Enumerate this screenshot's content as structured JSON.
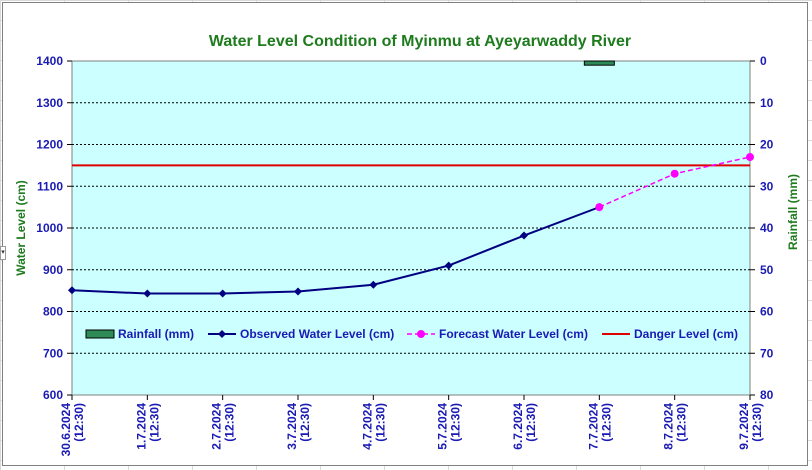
{
  "chart_data": {
    "type": "line",
    "title": "Water Level Condition of Myinmu at Ayeyarwaddy River",
    "ylabel": "Water Level (cm)",
    "y2label": "Rainfall (mm)",
    "ylim": [
      600,
      1400
    ],
    "y2lim": [
      0,
      80
    ],
    "y2_inverted": true,
    "yticks": [
      "600",
      "700",
      "800",
      "900",
      "1000",
      "1100",
      "1200",
      "1300",
      "1400"
    ],
    "y2ticks": [
      "0",
      "10",
      "20",
      "30",
      "40",
      "50",
      "60",
      "70",
      "80"
    ],
    "categories": [
      [
        "30.6.2024",
        "(12:30)"
      ],
      [
        "1.7.2024",
        "(12:30)"
      ],
      [
        "2.7.2024",
        "(12:30)"
      ],
      [
        "3.7.2024",
        "(12:30)"
      ],
      [
        "4.7.2024",
        "(12:30)"
      ],
      [
        "5.7.2024",
        "(12:30)"
      ],
      [
        "6.7.2024",
        "(12:30)"
      ],
      [
        "7.7.2024",
        "(12:30)"
      ],
      [
        "8.7.2024",
        "(12:30)"
      ],
      [
        "9.7.2024",
        "(12:30)"
      ]
    ],
    "series": [
      {
        "name": "Rainfall (mm)",
        "kind": "bar",
        "axis": "right",
        "color": "#2e8b57",
        "values": [
          null,
          null,
          null,
          null,
          null,
          null,
          null,
          1,
          null,
          null
        ]
      },
      {
        "name": "Observed Water Level (cm)",
        "kind": "line",
        "axis": "left",
        "color": "#000080",
        "marker": "diamond",
        "values": [
          851,
          843,
          843,
          848,
          864,
          910,
          982,
          1050,
          null,
          null
        ]
      },
      {
        "name": "Forecast Water Level (cm)",
        "kind": "line-dashed",
        "axis": "left",
        "color": "#ff00ff",
        "marker": "circle",
        "values": [
          null,
          null,
          null,
          null,
          null,
          null,
          null,
          1050,
          1130,
          1170
        ]
      },
      {
        "name": "Danger Level (cm)",
        "kind": "hline",
        "axis": "left",
        "color": "#e00000",
        "value": 1150
      }
    ],
    "legend_position": "inside-bottom",
    "plot_background": "#ccffff",
    "grid": "horizontal-dashed"
  }
}
